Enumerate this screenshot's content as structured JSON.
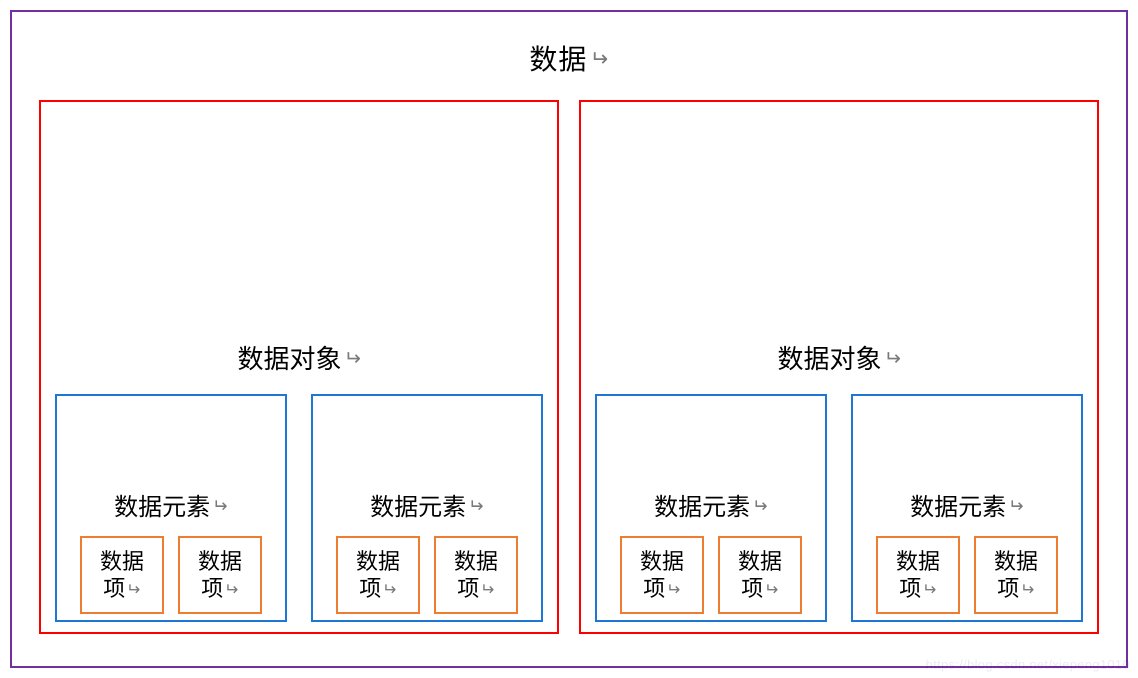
{
  "diagram": {
    "type": "nested-boxes",
    "background_color": "#ffffff",
    "outer": {
      "label": "数据",
      "border_color": "#7030a0",
      "border_width": 2,
      "objects": [
        {
          "label": "数据对象",
          "border_color": "#ff0000",
          "elements": [
            {
              "label": "数据元素",
              "border_color": "#1f77d4",
              "items": [
                {
                  "line1": "数据",
                  "line2": "项",
                  "border_color": "#ed7d31"
                },
                {
                  "line1": "数据",
                  "line2": "项",
                  "border_color": "#ed7d31"
                }
              ]
            },
            {
              "label": "数据元素",
              "border_color": "#1f77d4",
              "items": [
                {
                  "line1": "数据",
                  "line2": "项",
                  "border_color": "#ed7d31"
                },
                {
                  "line1": "数据",
                  "line2": "项",
                  "border_color": "#ed7d31"
                }
              ]
            }
          ]
        },
        {
          "label": "数据对象",
          "border_color": "#ff0000",
          "elements": [
            {
              "label": "数据元素",
              "border_color": "#1f77d4",
              "items": [
                {
                  "line1": "数据",
                  "line2": "项",
                  "border_color": "#ed7d31"
                },
                {
                  "line1": "数据",
                  "line2": "项",
                  "border_color": "#ed7d31"
                }
              ]
            },
            {
              "label": "数据元素",
              "border_color": "#1f77d4",
              "items": [
                {
                  "line1": "数据",
                  "line2": "项",
                  "border_color": "#ed7d31"
                },
                {
                  "line1": "数据",
                  "line2": "项",
                  "border_color": "#ed7d31"
                }
              ]
            }
          ]
        }
      ]
    },
    "return_glyph": "↵",
    "font_family": "Microsoft YaHei",
    "label_fontsize": {
      "outer": 28,
      "object": 26,
      "element": 24,
      "item": 22
    },
    "watermark": "https://blog.csdn.net/xiepeng1010"
  }
}
